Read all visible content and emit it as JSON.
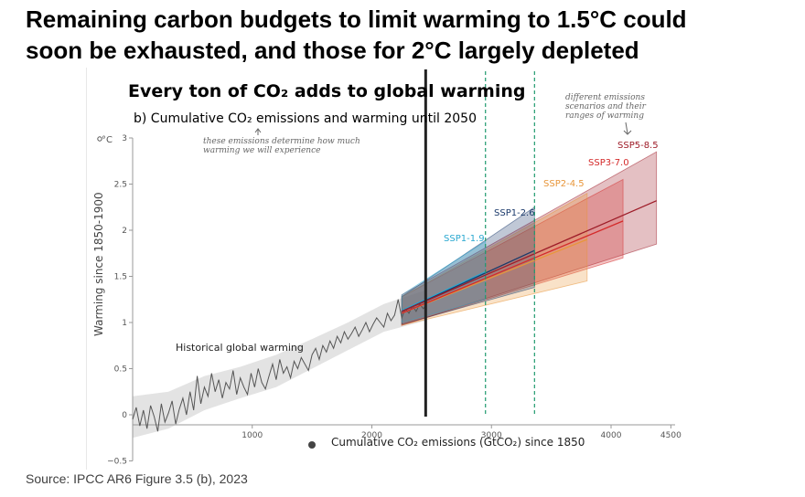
{
  "headline": {
    "line1": "Remaining carbon budgets to limit warming to 1.5°C could",
    "line2": "soon be exhausted, and those for 2°C largely depleted"
  },
  "source": "Source: IPCC AR6 Figure 3.5 (b), 2023",
  "chart_data": {
    "type": "line",
    "title": "Every ton of CO₂ adds to global warming",
    "subtitle": "b) Cumulative CO₂ emissions and warming until 2050",
    "xlabel": "Cumulative CO₂ emissions (GtCO₂) since 1850",
    "ylabel": "Warming since 1850-1900",
    "ylabel_unit": "°C",
    "xlim": [
      0,
      4500
    ],
    "ylim": [
      -0.5,
      3
    ],
    "xticks": [
      1000,
      2000,
      3000,
      4000,
      4500
    ],
    "yticks": [
      -0.5,
      0,
      0.5,
      1,
      1.5,
      2,
      2.5,
      3
    ],
    "ytick_labels": [
      "−0.5",
      "0",
      "0.5",
      "1",
      "1.5",
      "2",
      "2.5",
      "3"
    ],
    "annotations": {
      "emissions_note": "these emissions determine how much warming we will experience",
      "scenarios_note": "different emissions scenarios and their ranges of warming",
      "historical_label": "Historical global warming"
    },
    "present_day_x": 2450,
    "dashed_lines_x": [
      2950,
      3360
    ],
    "historical": {
      "name": "Historical global warming",
      "x": [
        0,
        30,
        60,
        90,
        120,
        150,
        180,
        210,
        240,
        270,
        300,
        330,
        360,
        390,
        420,
        450,
        480,
        510,
        540,
        570,
        600,
        630,
        660,
        690,
        720,
        750,
        780,
        810,
        840,
        870,
        900,
        930,
        960,
        990,
        1020,
        1050,
        1080,
        1110,
        1140,
        1170,
        1200,
        1230,
        1260,
        1290,
        1320,
        1350,
        1380,
        1410,
        1440,
        1470,
        1500,
        1530,
        1560,
        1590,
        1620,
        1650,
        1680,
        1710,
        1740,
        1770,
        1800,
        1830,
        1860,
        1890,
        1920,
        1950,
        1980,
        2010,
        2040,
        2070,
        2100,
        2130,
        2160,
        2190,
        2220,
        2250,
        2280,
        2310,
        2340,
        2370,
        2400,
        2430,
        2450
      ],
      "y": [
        -0.05,
        0.08,
        -0.12,
        0.05,
        -0.15,
        0.1,
        -0.02,
        -0.18,
        0.12,
        -0.08,
        0.02,
        0.15,
        -0.1,
        0.06,
        0.18,
        0.0,
        0.25,
        0.05,
        0.42,
        0.12,
        0.3,
        0.2,
        0.45,
        0.25,
        0.38,
        0.18,
        0.35,
        0.28,
        0.48,
        0.22,
        0.4,
        0.3,
        0.22,
        0.45,
        0.3,
        0.5,
        0.35,
        0.28,
        0.42,
        0.55,
        0.38,
        0.6,
        0.45,
        0.52,
        0.4,
        0.58,
        0.5,
        0.62,
        0.55,
        0.48,
        0.65,
        0.72,
        0.6,
        0.75,
        0.68,
        0.8,
        0.72,
        0.85,
        0.78,
        0.9,
        0.82,
        0.88,
        0.95,
        0.85,
        0.92,
        1.0,
        0.9,
        0.98,
        1.05,
        1.0,
        0.95,
        1.1,
        1.02,
        1.08,
        1.25,
        1.05,
        1.15,
        1.1,
        1.18,
        1.12,
        1.2,
        1.15,
        1.18
      ]
    },
    "historical_band": {
      "x": [
        0,
        300,
        600,
        900,
        1200,
        1500,
        1800,
        2100,
        2450
      ],
      "low": [
        -0.25,
        -0.15,
        0.05,
        0.18,
        0.3,
        0.5,
        0.7,
        0.9,
        1.02
      ],
      "high": [
        0.2,
        0.25,
        0.42,
        0.52,
        0.65,
        0.82,
        1.0,
        1.2,
        1.35
      ]
    },
    "series": [
      {
        "name": "SSP1-1.9",
        "color": "#2aa8d0",
        "x": [
          2250,
          2950
        ],
        "y": [
          1.13,
          1.55
        ],
        "band_low": [
          1.0,
          1.25
        ],
        "band_high": [
          1.3,
          1.88
        ]
      },
      {
        "name": "SSP1-2.6",
        "color": "#1b3a6b",
        "x": [
          2250,
          3360
        ],
        "y": [
          1.12,
          1.78
        ],
        "band_low": [
          0.98,
          1.38
        ],
        "band_high": [
          1.28,
          2.25
        ]
      },
      {
        "name": "SSP2-4.5",
        "color": "#e8963a",
        "x": [
          2250,
          3800
        ],
        "y": [
          1.1,
          1.9
        ],
        "band_low": [
          0.97,
          1.45
        ],
        "band_high": [
          1.28,
          2.4
        ]
      },
      {
        "name": "SSP3-7.0",
        "color": "#d42a2a",
        "x": [
          2250,
          4100
        ],
        "y": [
          1.1,
          2.1
        ],
        "band_low": [
          0.97,
          1.7
        ],
        "band_high": [
          1.28,
          2.55
        ]
      },
      {
        "name": "SSP5-8.5",
        "color": "#9e1c28",
        "x": [
          2250,
          4380
        ],
        "y": [
          1.12,
          2.32
        ],
        "band_low": [
          0.97,
          1.85
        ],
        "band_high": [
          1.3,
          2.85
        ]
      }
    ]
  }
}
